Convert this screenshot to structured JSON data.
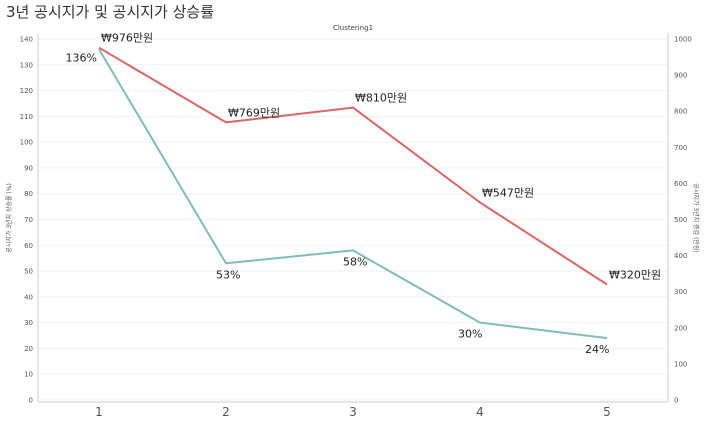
{
  "title": "3년 공시지가 및 공시지가 상승률",
  "chart_data": {
    "type": "line",
    "subtitle": "Clustering1",
    "x": [
      "1",
      "2",
      "3",
      "4",
      "5"
    ],
    "y_left": {
      "label": "공시지가 3년치 상승률 (%)",
      "range": [
        0,
        140
      ],
      "ticks": [
        "0",
        "10",
        "20",
        "30",
        "40",
        "50",
        "60",
        "70",
        "80",
        "90",
        "100",
        "110",
        "120",
        "130",
        "140"
      ]
    },
    "y_right": {
      "label": "공시지가 3년치 증감 (만원)",
      "range": [
        0,
        1000
      ],
      "ticks": [
        "0",
        "100",
        "200",
        "300",
        "400",
        "500",
        "600",
        "700",
        "800",
        "900",
        "1000"
      ]
    },
    "grid": true,
    "series": [
      {
        "axis": "left",
        "color": "#7fbdb8",
        "values": [
          136,
          53,
          58,
          30,
          24
        ],
        "labels": [
          "136%",
          "53%",
          "58%",
          "30%",
          "24%"
        ]
      },
      {
        "axis": "right",
        "color": "#e06464",
        "values": [
          976,
          769,
          810,
          547,
          320
        ],
        "labels": [
          "₩976만원",
          "₩769만원",
          "₩810만원",
          "₩547만원",
          "₩320만원"
        ]
      }
    ]
  }
}
